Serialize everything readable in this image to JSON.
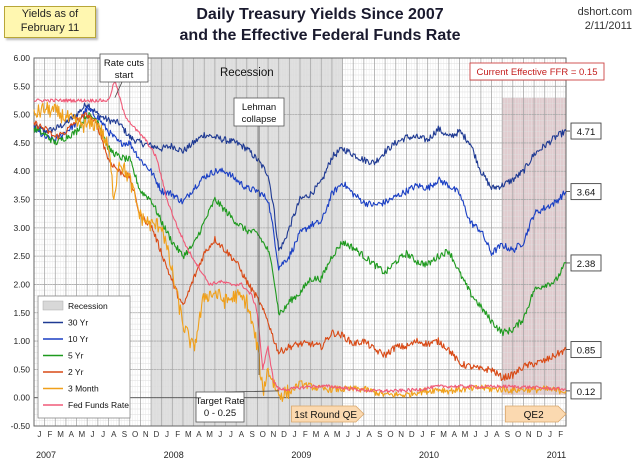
{
  "header": {
    "title_line1": "Daily Treasury Yields Since 2007",
    "title_line2": "and the Effective Federal Funds Rate",
    "yields_as_of_line1": "Yields as of",
    "yields_as_of_line2": "February 11",
    "source": "dshort.com",
    "date": "2/11/2011"
  },
  "colors": {
    "y30": "#1f3a93",
    "y10": "#1a3fc4",
    "y5": "#1e9a1e",
    "y2": "#d94a16",
    "m3": "#f0a01a",
    "ffr": "#f05a78",
    "recession": "#d8d8d8",
    "qe2": "#c9a3a8"
  },
  "chart_data": {
    "type": "line",
    "title": "Daily Treasury Yields Since 2007 and the Effective Federal Funds Rate",
    "xlabel": "",
    "ylabel": "",
    "x_unit": "months since Jan 2007",
    "xlim": [
      0,
      50
    ],
    "ylim": [
      -0.5,
      6.0
    ],
    "y_ticks": [
      "6.00",
      "5.50",
      "5.00",
      "4.50",
      "4.00",
      "3.50",
      "3.00",
      "2.50",
      "2.00",
      "1.50",
      "1.00",
      "0.50",
      "0.00",
      "-0.50"
    ],
    "month_ticks": [
      "J",
      "F",
      "M",
      "A",
      "M",
      "J",
      "J",
      "A",
      "S",
      "O",
      "N",
      "D",
      "J",
      "F",
      "M",
      "A",
      "M",
      "J",
      "J",
      "A",
      "S",
      "O",
      "N",
      "D",
      "J",
      "F",
      "M",
      "A",
      "M",
      "J",
      "J",
      "A",
      "S",
      "O",
      "N",
      "D",
      "J",
      "F",
      "M",
      "A",
      "M",
      "J",
      "J",
      "A",
      "S",
      "O",
      "N",
      "D",
      "J",
      "F"
    ],
    "year_labels": [
      {
        "label": "2007",
        "x": 0
      },
      {
        "label": "2008",
        "x": 12
      },
      {
        "label": "2009",
        "x": 24
      },
      {
        "label": "2010",
        "x": 36
      },
      {
        "label": "2011",
        "x": 48
      }
    ],
    "series": [
      {
        "name": "30 Yr",
        "color": "#1f3a93",
        "end_label": "4.71",
        "x": [
          0,
          1,
          2,
          3,
          4,
          5,
          6,
          7,
          8,
          9,
          10,
          11,
          12,
          13,
          14,
          15,
          16,
          17,
          18,
          19,
          20,
          21,
          22,
          22.5,
          23,
          23.5,
          24,
          25,
          26,
          27,
          28,
          29,
          30,
          31,
          32,
          33,
          34,
          35,
          36,
          37,
          38,
          39,
          40,
          41,
          42,
          43,
          44,
          45,
          46,
          47,
          48,
          49,
          50
        ],
        "y": [
          4.8,
          4.7,
          4.75,
          4.85,
          5.0,
          5.2,
          5.0,
          4.9,
          4.85,
          4.6,
          4.5,
          4.45,
          4.4,
          4.45,
          4.35,
          4.5,
          4.65,
          4.6,
          4.55,
          4.5,
          4.4,
          4.2,
          3.95,
          3.4,
          2.6,
          2.75,
          3.0,
          3.5,
          3.6,
          3.8,
          4.25,
          4.4,
          4.3,
          4.2,
          4.15,
          4.35,
          4.5,
          4.6,
          4.6,
          4.55,
          4.75,
          4.6,
          4.7,
          4.5,
          4.0,
          3.7,
          3.75,
          3.85,
          4.0,
          4.3,
          4.45,
          4.6,
          4.71
        ]
      },
      {
        "name": "10 Yr",
        "color": "#1a3fc4",
        "end_label": "3.64",
        "x": [
          0,
          1,
          2,
          3,
          4,
          5,
          6,
          7,
          8,
          9,
          10,
          11,
          12,
          13,
          14,
          15,
          16,
          17,
          18,
          19,
          20,
          21,
          22,
          22.5,
          23,
          23.5,
          24,
          25,
          26,
          27,
          28,
          29,
          30,
          31,
          32,
          33,
          34,
          35,
          36,
          37,
          38,
          39,
          40,
          41,
          42,
          43,
          44,
          45,
          46,
          47,
          48,
          49,
          50
        ],
        "y": [
          4.75,
          4.6,
          4.55,
          4.7,
          4.85,
          5.1,
          4.95,
          4.7,
          4.5,
          4.5,
          4.2,
          4.0,
          3.65,
          3.6,
          3.45,
          3.7,
          3.9,
          4.0,
          4.0,
          3.85,
          3.7,
          3.65,
          3.5,
          2.95,
          2.3,
          2.4,
          2.5,
          2.9,
          3.05,
          3.1,
          3.6,
          3.8,
          3.6,
          3.45,
          3.4,
          3.45,
          3.55,
          3.65,
          3.75,
          3.7,
          3.85,
          3.75,
          3.6,
          3.1,
          2.95,
          2.55,
          2.7,
          2.6,
          2.75,
          3.25,
          3.35,
          3.45,
          3.64
        ]
      },
      {
        "name": "5 Yr",
        "color": "#1e9a1e",
        "end_label": "2.38",
        "x": [
          0,
          1,
          2,
          3,
          4,
          5,
          6,
          7,
          8,
          9,
          10,
          11,
          12,
          13,
          14,
          15,
          16,
          17,
          18,
          19,
          20,
          21,
          22,
          22.5,
          23,
          23.5,
          24,
          25,
          26,
          27,
          28,
          29,
          30,
          31,
          32,
          33,
          34,
          35,
          36,
          37,
          38,
          39,
          40,
          41,
          42,
          43,
          44,
          45,
          46,
          47,
          48,
          49,
          50
        ],
        "y": [
          4.75,
          4.65,
          4.5,
          4.6,
          4.7,
          5.0,
          4.9,
          4.4,
          4.25,
          4.2,
          3.65,
          3.5,
          3.1,
          2.75,
          2.5,
          2.7,
          3.1,
          3.5,
          3.3,
          3.1,
          2.95,
          2.9,
          2.6,
          2.2,
          1.5,
          1.55,
          1.7,
          1.85,
          2.1,
          2.1,
          2.5,
          2.75,
          2.65,
          2.5,
          2.35,
          2.2,
          2.4,
          2.55,
          2.4,
          2.35,
          2.5,
          2.6,
          2.2,
          1.85,
          1.6,
          1.35,
          1.15,
          1.2,
          1.4,
          1.9,
          2.0,
          2.05,
          2.38
        ]
      },
      {
        "name": "2 Yr",
        "color": "#d94a16",
        "end_label": "0.85",
        "x": [
          0,
          1,
          2,
          3,
          4,
          5,
          6,
          7,
          8,
          9,
          10,
          11,
          12,
          13,
          14,
          15,
          16,
          17,
          18,
          19,
          20,
          21,
          22,
          22.5,
          23,
          23.5,
          24,
          25,
          26,
          27,
          28,
          29,
          30,
          31,
          32,
          33,
          34,
          35,
          36,
          37,
          38,
          39,
          40,
          41,
          42,
          43,
          44,
          45,
          46,
          47,
          48,
          49,
          50
        ],
        "y": [
          4.85,
          4.75,
          4.6,
          4.7,
          4.9,
          5.0,
          4.8,
          4.2,
          4.0,
          3.9,
          3.2,
          3.05,
          2.55,
          2.05,
          1.6,
          2.1,
          2.55,
          2.8,
          2.6,
          2.4,
          2.05,
          1.75,
          1.35,
          1.05,
          0.8,
          0.85,
          0.9,
          0.95,
          0.95,
          0.9,
          1.15,
          1.1,
          0.95,
          1.0,
          0.85,
          0.75,
          0.9,
          0.9,
          1.0,
          0.95,
          1.0,
          0.85,
          0.6,
          0.55,
          0.5,
          0.5,
          0.35,
          0.4,
          0.55,
          0.6,
          0.65,
          0.75,
          0.85
        ]
      },
      {
        "name": "3 Month",
        "color": "#f0a01a",
        "end_label": "0.12",
        "x": [
          0,
          1,
          2,
          3,
          4,
          5,
          6,
          7,
          7.5,
          8,
          9,
          10,
          11,
          12,
          13,
          14,
          15,
          16,
          17,
          18,
          19,
          20,
          21,
          21.5,
          22,
          23,
          24,
          25,
          26,
          27,
          28,
          29,
          30,
          31,
          32,
          33,
          34,
          35,
          36,
          37,
          38,
          39,
          40,
          41,
          42,
          43,
          44,
          45,
          46,
          47,
          48,
          49,
          50
        ],
        "y": [
          5.0,
          5.1,
          5.05,
          4.95,
          4.85,
          4.8,
          4.85,
          4.4,
          3.55,
          4.2,
          3.85,
          3.2,
          3.05,
          3.05,
          2.2,
          1.3,
          0.85,
          1.8,
          1.85,
          1.7,
          1.8,
          1.7,
          0.9,
          0.1,
          0.5,
          0.05,
          0.1,
          0.25,
          0.2,
          0.15,
          0.15,
          0.15,
          0.15,
          0.15,
          0.1,
          0.05,
          0.05,
          0.05,
          0.1,
          0.12,
          0.15,
          0.12,
          0.15,
          0.15,
          0.18,
          0.15,
          0.15,
          0.13,
          0.15,
          0.14,
          0.15,
          0.13,
          0.12
        ]
      },
      {
        "name": "Fed Funds Rate",
        "color": "#f05a78",
        "end_label": "0.15",
        "x": [
          0,
          7,
          7.6,
          8.5,
          9.5,
          10.5,
          11.5,
          12.5,
          13.5,
          14.5,
          15.5,
          16.5,
          17.5,
          18.5,
          19.5,
          20.5,
          21,
          21.5,
          22,
          22.5,
          23,
          24,
          26,
          28,
          30,
          32,
          34,
          36,
          38,
          40,
          42,
          44,
          46,
          48,
          50
        ],
        "y": [
          5.25,
          5.25,
          5.6,
          5.0,
          4.75,
          4.55,
          4.25,
          3.5,
          3.0,
          2.6,
          2.3,
          2.0,
          2.05,
          2.0,
          2.0,
          1.8,
          1.5,
          0.5,
          0.9,
          0.3,
          0.15,
          0.15,
          0.2,
          0.2,
          0.15,
          0.12,
          0.12,
          0.14,
          0.2,
          0.2,
          0.19,
          0.2,
          0.19,
          0.17,
          0.15
        ]
      }
    ],
    "shaded_regions": [
      {
        "label": "Recession",
        "from": 11,
        "to": 29
      },
      {
        "label": "QE2",
        "from": 44,
        "to": 50
      }
    ],
    "annotations": {
      "rate_cuts": "Rate cuts start",
      "recession": "Recession",
      "lehman": "Lehman collapse",
      "target_rate_line1": "Target Rate",
      "target_rate_line2": "0 - 0.25",
      "qe1": "1st Round QE",
      "qe2": "QE2",
      "current_ffr": "Current Effective FFR = 0.15"
    },
    "legend": {
      "position": "bottom-left",
      "entries": [
        "Recession",
        "30 Yr",
        "10 Yr",
        "5 Yr",
        "2 Yr",
        "3 Month",
        "Fed Funds Rate"
      ]
    }
  }
}
